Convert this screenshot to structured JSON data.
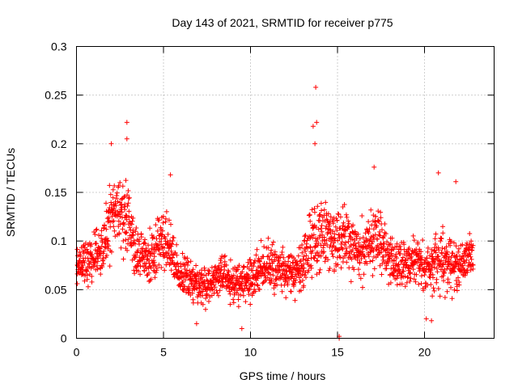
{
  "chart_data": {
    "type": "scatter",
    "title": "Day 143 of 2021, SRMTID for receiver p775",
    "xlabel": "GPS time / hours",
    "ylabel": "SRMTID / TECUs",
    "xlim": [
      0,
      24
    ],
    "ylim": [
      0,
      0.3
    ],
    "xticks": [
      0,
      5,
      10,
      15,
      20
    ],
    "xtick_labels": [
      "0",
      "5",
      "10",
      "15",
      "20"
    ],
    "yticks": [
      0,
      0.05,
      0.1,
      0.15,
      0.2,
      0.25,
      0.3
    ],
    "ytick_labels": [
      "0",
      "0.05",
      "0.1",
      "0.15",
      "0.2",
      "0.25",
      "0.3"
    ],
    "grid": true,
    "marker": "+",
    "series": [
      {
        "name": "SRMTID",
        "color": "#ff0000",
        "x_start": 0.0,
        "x_step": 0.034,
        "time_profile_hours": [
          0.0,
          0.5,
          1.0,
          1.5,
          2.0,
          2.5,
          3.0,
          3.5,
          4.0,
          4.5,
          5.0,
          5.5,
          6.0,
          6.5,
          7.0,
          7.5,
          8.0,
          8.5,
          9.0,
          9.5,
          10.0,
          10.5,
          11.0,
          11.5,
          12.0,
          12.5,
          13.0,
          13.5,
          14.0,
          14.5,
          15.0,
          15.5,
          16.0,
          16.5,
          17.0,
          17.5,
          18.0,
          18.5,
          19.0,
          19.5,
          20.0,
          20.5,
          21.0,
          21.5,
          22.0,
          22.5,
          22.8
        ],
        "time_profile_median": [
          0.075,
          0.08,
          0.085,
          0.09,
          0.13,
          0.13,
          0.12,
          0.085,
          0.08,
          0.09,
          0.1,
          0.085,
          0.065,
          0.06,
          0.055,
          0.055,
          0.06,
          0.065,
          0.055,
          0.055,
          0.06,
          0.07,
          0.075,
          0.07,
          0.065,
          0.065,
          0.075,
          0.1,
          0.11,
          0.1,
          0.1,
          0.1,
          0.09,
          0.09,
          0.1,
          0.1,
          0.08,
          0.075,
          0.075,
          0.08,
          0.07,
          0.075,
          0.08,
          0.075,
          0.075,
          0.085,
          0.085
        ],
        "time_profile_spread": [
          0.02,
          0.025,
          0.03,
          0.03,
          0.04,
          0.04,
          0.04,
          0.03,
          0.025,
          0.03,
          0.03,
          0.025,
          0.02,
          0.02,
          0.018,
          0.02,
          0.02,
          0.022,
          0.02,
          0.02,
          0.022,
          0.025,
          0.025,
          0.025,
          0.025,
          0.025,
          0.025,
          0.04,
          0.04,
          0.03,
          0.03,
          0.03,
          0.03,
          0.03,
          0.03,
          0.03,
          0.025,
          0.025,
          0.025,
          0.025,
          0.025,
          0.025,
          0.03,
          0.03,
          0.025,
          0.025,
          0.025
        ],
        "notable_points": [
          {
            "x": 2.9,
            "y": 0.222
          },
          {
            "x": 2.9,
            "y": 0.205
          },
          {
            "x": 2.0,
            "y": 0.2
          },
          {
            "x": 13.6,
            "y": 0.218
          },
          {
            "x": 13.8,
            "y": 0.222
          },
          {
            "x": 13.75,
            "y": 0.258
          },
          {
            "x": 13.7,
            "y": 0.2
          },
          {
            "x": 5.4,
            "y": 0.168
          },
          {
            "x": 20.8,
            "y": 0.17
          },
          {
            "x": 21.8,
            "y": 0.161
          },
          {
            "x": 17.1,
            "y": 0.176
          },
          {
            "x": 9.5,
            "y": 0.01
          },
          {
            "x": 15.1,
            "y": 0.0
          },
          {
            "x": 15.1,
            "y": 0.002
          },
          {
            "x": 20.1,
            "y": 0.02
          },
          {
            "x": 20.4,
            "y": 0.018
          },
          {
            "x": 6.9,
            "y": 0.015
          }
        ]
      }
    ]
  }
}
